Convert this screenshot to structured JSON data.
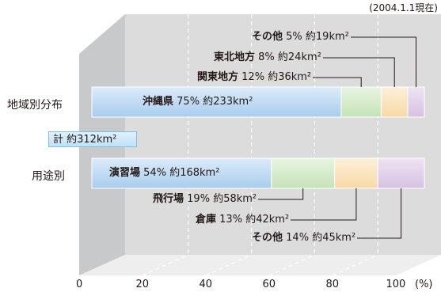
{
  "note": "(2004.1.1現在)",
  "chart_data": {
    "type": "bar",
    "orientation": "horizontal",
    "stacked": true,
    "percent_axis": true,
    "x_ticks": [
      "0",
      "20",
      "40",
      "60",
      "80",
      "100"
    ],
    "x_unit": "(%)",
    "xlim": [
      0,
      100
    ],
    "total_label": "計 約312km²",
    "colors": {
      "blue": "#a8cdee",
      "green": "#cfe9c4",
      "orange": "#fbe0b4",
      "purple": "#dcc8e6"
    },
    "bars": [
      {
        "label": "地域別分布",
        "segments": [
          {
            "name": "沖縄県",
            "pct_text": "75%",
            "area_text": "約233km²",
            "value": 75,
            "color": "blue"
          },
          {
            "name": "関東地方",
            "pct_text": "12%",
            "area_text": "約36km²",
            "value": 12,
            "color": "green"
          },
          {
            "name": "東北地方",
            "pct_text": "8%",
            "area_text": "約24km²",
            "value": 8,
            "color": "orange"
          },
          {
            "name": "その他",
            "pct_text": "5%",
            "area_text": "約19km²",
            "value": 5,
            "color": "purple"
          }
        ]
      },
      {
        "label": "用途別",
        "segments": [
          {
            "name": "演習場",
            "pct_text": "54%",
            "area_text": "約168km²",
            "value": 54,
            "color": "blue"
          },
          {
            "name": "飛行場",
            "pct_text": "19%",
            "area_text": "約58km²",
            "value": 19,
            "color": "green"
          },
          {
            "name": "倉庫",
            "pct_text": "13%",
            "area_text": "約42km²",
            "value": 13,
            "color": "orange"
          },
          {
            "name": "その他",
            "pct_text": "14%",
            "area_text": "約45km²",
            "value": 14,
            "color": "purple"
          }
        ]
      }
    ]
  }
}
